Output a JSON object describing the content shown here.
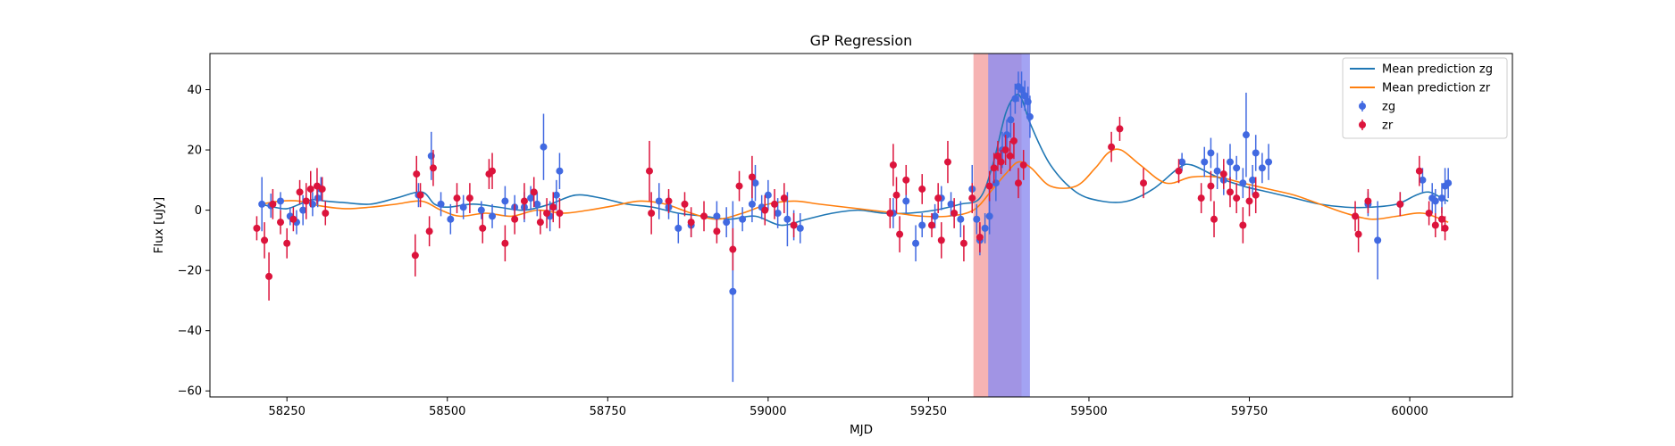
{
  "chart_data": {
    "type": "scatter",
    "title": "GP Regression",
    "xlabel": "MJD",
    "ylabel": "Flux [uJy]",
    "xlim": [
      58130,
      60160
    ],
    "ylim": [
      -62,
      52
    ],
    "xticks": [
      58250,
      58500,
      58750,
      59000,
      59250,
      59500,
      59750,
      60000
    ],
    "yticks": [
      -60,
      -40,
      -20,
      0,
      20,
      40
    ],
    "grid": false,
    "legend_position": "top-right",
    "legend_entries": [
      "Mean prediction zg",
      "Mean prediction zr",
      "zg",
      "zr"
    ],
    "shaded_regions": [
      {
        "x0": 59320,
        "x1": 59395,
        "color": "#f4a0a0"
      },
      {
        "x0": 59343,
        "x1": 59408,
        "color": "#8c8cf0"
      }
    ],
    "series": [
      {
        "name": "Mean prediction zg",
        "kind": "line",
        "color": "#1f77b4",
        "x": [
          58210,
          58230,
          58250,
          58270,
          58290,
          58310,
          58340,
          58380,
          58420,
          58460,
          58480,
          58500,
          58540,
          58580,
          58620,
          58660,
          58700,
          58740,
          58780,
          58820,
          58860,
          58900,
          58940,
          58980,
          59020,
          59060,
          59100,
          59140,
          59180,
          59220,
          59260,
          59300,
          59330,
          59350,
          59370,
          59385,
          59395,
          59410,
          59440,
          59480,
          59520,
          59560,
          59600,
          59640,
          59660,
          59700,
          59740,
          59780,
          59820,
          59860,
          59900,
          59940,
          59980,
          60010,
          60030,
          60050,
          60060
        ],
        "y": [
          2,
          1,
          0.5,
          2,
          3.5,
          3,
          2.5,
          2,
          4,
          6,
          2,
          1,
          2,
          1,
          0,
          2,
          5,
          4,
          2,
          1,
          -1,
          -2,
          -3,
          -2,
          -5,
          -3,
          -1,
          0,
          -1,
          -1,
          0,
          2,
          4,
          15,
          32,
          38,
          37,
          28,
          15,
          6,
          3,
          3,
          7,
          14,
          15,
          11,
          8,
          6,
          4,
          2,
          1,
          1,
          2,
          5,
          6,
          4,
          3
        ]
      },
      {
        "name": "Mean prediction zr",
        "kind": "line",
        "color": "#ff7f0e",
        "x": [
          58210,
          58240,
          58270,
          58300,
          58340,
          58380,
          58420,
          58460,
          58490,
          58520,
          58560,
          58600,
          58640,
          58680,
          58720,
          58760,
          58800,
          58840,
          58880,
          58920,
          58960,
          59000,
          59040,
          59080,
          59120,
          59160,
          59200,
          59240,
          59280,
          59320,
          59350,
          59370,
          59390,
          59410,
          59440,
          59480,
          59510,
          59530,
          59550,
          59580,
          59620,
          59660,
          59700,
          59740,
          59780,
          59820,
          59860,
          59900,
          59940,
          59980,
          60020,
          60060
        ],
        "y": [
          2,
          3,
          3,
          1.5,
          0.5,
          1,
          2,
          3,
          0,
          -2,
          -1,
          -2,
          0,
          -1,
          0,
          1.5,
          3,
          2,
          -1,
          -3,
          -1,
          2,
          3,
          2,
          1,
          0,
          -1,
          -2,
          -2,
          0,
          7,
          12,
          16,
          14,
          8,
          8,
          14,
          19,
          20,
          15,
          9,
          11,
          11,
          9,
          7,
          5,
          2,
          -1,
          -3,
          -2,
          -1,
          -4
        ]
      },
      {
        "name": "zg",
        "kind": "errorbar",
        "color": "#4169e1",
        "points": [
          [
            58211,
            2,
            9
          ],
          [
            58225,
            1.5,
            4
          ],
          [
            58240,
            3,
            3
          ],
          [
            58255,
            -2,
            3
          ],
          [
            58265,
            -4,
            4
          ],
          [
            58275,
            0,
            5
          ],
          [
            58290,
            2,
            4
          ],
          [
            58298,
            4,
            3
          ],
          [
            58303,
            7,
            4
          ],
          [
            58455,
            5,
            4
          ],
          [
            58475,
            18,
            8
          ],
          [
            58490,
            2,
            4
          ],
          [
            58505,
            -3,
            5
          ],
          [
            58525,
            1,
            4
          ],
          [
            58553,
            0,
            3
          ],
          [
            58570,
            -2,
            4
          ],
          [
            58590,
            3,
            5
          ],
          [
            58605,
            1,
            4
          ],
          [
            58620,
            1,
            5
          ],
          [
            58630,
            4,
            4
          ],
          [
            58640,
            2,
            4
          ],
          [
            58650,
            21,
            11
          ],
          [
            58660,
            -2,
            5
          ],
          [
            58670,
            5,
            5
          ],
          [
            58675,
            13,
            6
          ],
          [
            58830,
            3,
            6
          ],
          [
            58845,
            1,
            4
          ],
          [
            58860,
            -6,
            5
          ],
          [
            58880,
            -5,
            4
          ],
          [
            58920,
            -2,
            5
          ],
          [
            58935,
            -4,
            5
          ],
          [
            58945,
            -27,
            30
          ],
          [
            58960,
            -3,
            4
          ],
          [
            58975,
            2,
            6
          ],
          [
            58980,
            9,
            6
          ],
          [
            58990,
            1,
            4
          ],
          [
            59000,
            5,
            5
          ],
          [
            59015,
            -1,
            5
          ],
          [
            59030,
            -3,
            9
          ],
          [
            59040,
            -5,
            5
          ],
          [
            59050,
            -6,
            5
          ],
          [
            59195,
            -1,
            5
          ],
          [
            59215,
            3,
            4
          ],
          [
            59230,
            -11,
            6
          ],
          [
            59240,
            -5,
            4
          ],
          [
            59260,
            -2,
            4
          ],
          [
            59270,
            4,
            4
          ],
          [
            59285,
            2,
            4
          ],
          [
            59300,
            -3,
            6
          ],
          [
            59318,
            7,
            8
          ],
          [
            59325,
            -3,
            5
          ],
          [
            59330,
            -10,
            5
          ],
          [
            59338,
            -6,
            5
          ],
          [
            59345,
            -2,
            6
          ],
          [
            59355,
            9,
            6
          ],
          [
            59365,
            20,
            6
          ],
          [
            59372,
            25,
            5
          ],
          [
            59378,
            30,
            6
          ],
          [
            59385,
            37,
            5
          ],
          [
            59390,
            41,
            5
          ],
          [
            59395,
            40,
            6
          ],
          [
            59400,
            38,
            5
          ],
          [
            59405,
            36,
            5
          ],
          [
            59408,
            31,
            7
          ],
          [
            59645,
            16,
            3
          ],
          [
            59680,
            16,
            5
          ],
          [
            59690,
            19,
            5
          ],
          [
            59700,
            13,
            6
          ],
          [
            59710,
            10,
            5
          ],
          [
            59720,
            16,
            6
          ],
          [
            59730,
            14,
            4
          ],
          [
            59740,
            9,
            5
          ],
          [
            59745,
            25,
            14
          ],
          [
            59755,
            10,
            5
          ],
          [
            59760,
            19,
            6
          ],
          [
            59770,
            14,
            5
          ],
          [
            59780,
            16,
            6
          ],
          [
            59935,
            2,
            4
          ],
          [
            59950,
            -10,
            13
          ],
          [
            59985,
            2,
            4
          ],
          [
            60020,
            10,
            4
          ],
          [
            60035,
            4,
            5
          ],
          [
            60040,
            3,
            4
          ],
          [
            60050,
            4,
            5
          ],
          [
            60055,
            8,
            6
          ],
          [
            60060,
            9,
            5
          ]
        ]
      },
      {
        "name": "zr",
        "kind": "errorbar",
        "color": "#dc143c",
        "points": [
          [
            58203,
            -6,
            4
          ],
          [
            58215,
            -10,
            6
          ],
          [
            58222,
            -22,
            8
          ],
          [
            58228,
            2,
            5
          ],
          [
            58240,
            -4,
            4
          ],
          [
            58250,
            -11,
            5
          ],
          [
            58260,
            -3,
            4
          ],
          [
            58270,
            6,
            4
          ],
          [
            58280,
            3,
            6
          ],
          [
            58287,
            7,
            6
          ],
          [
            58297,
            8,
            6
          ],
          [
            58305,
            7,
            4
          ],
          [
            58310,
            -1,
            4
          ],
          [
            58450,
            -15,
            7
          ],
          [
            58452,
            12,
            6
          ],
          [
            58458,
            5,
            4
          ],
          [
            58472,
            -7,
            5
          ],
          [
            58478,
            14,
            6
          ],
          [
            58515,
            4,
            5
          ],
          [
            58535,
            4,
            5
          ],
          [
            58555,
            -6,
            5
          ],
          [
            58565,
            12,
            5
          ],
          [
            58570,
            13,
            6
          ],
          [
            58590,
            -11,
            6
          ],
          [
            58605,
            -3,
            5
          ],
          [
            58620,
            3,
            6
          ],
          [
            58635,
            6,
            5
          ],
          [
            58645,
            -4,
            4
          ],
          [
            58655,
            -1,
            5
          ],
          [
            58665,
            1,
            5
          ],
          [
            58675,
            -1,
            5
          ],
          [
            58815,
            13,
            10
          ],
          [
            58818,
            -1,
            7
          ],
          [
            58845,
            3,
            4
          ],
          [
            58870,
            2,
            4
          ],
          [
            58880,
            -4,
            5
          ],
          [
            58900,
            -2,
            5
          ],
          [
            58920,
            -7,
            4
          ],
          [
            58945,
            -13,
            7
          ],
          [
            58955,
            8,
            5
          ],
          [
            58975,
            11,
            7
          ],
          [
            58995,
            0,
            5
          ],
          [
            59010,
            2,
            5
          ],
          [
            59025,
            4,
            5
          ],
          [
            59040,
            -5,
            4
          ],
          [
            59190,
            -1,
            5
          ],
          [
            59195,
            15,
            7
          ],
          [
            59200,
            5,
            6
          ],
          [
            59205,
            -8,
            6
          ],
          [
            59215,
            10,
            5
          ],
          [
            59240,
            7,
            5
          ],
          [
            59255,
            -5,
            4
          ],
          [
            59265,
            4,
            5
          ],
          [
            59270,
            -10,
            6
          ],
          [
            59280,
            16,
            7
          ],
          [
            59290,
            -1,
            5
          ],
          [
            59305,
            -11,
            6
          ],
          [
            59318,
            4,
            5
          ],
          [
            59330,
            -9,
            5
          ],
          [
            59345,
            8,
            5
          ],
          [
            59352,
            14,
            5
          ],
          [
            59358,
            18,
            5
          ],
          [
            59363,
            16,
            4
          ],
          [
            59370,
            20,
            5
          ],
          [
            59377,
            18,
            5
          ],
          [
            59383,
            23,
            6
          ],
          [
            59390,
            9,
            5
          ],
          [
            59398,
            15,
            5
          ],
          [
            59535,
            21,
            5
          ],
          [
            59548,
            27,
            4
          ],
          [
            59585,
            9,
            5
          ],
          [
            59640,
            13,
            4
          ],
          [
            59675,
            4,
            5
          ],
          [
            59690,
            8,
            5
          ],
          [
            59695,
            -3,
            6
          ],
          [
            59710,
            12,
            5
          ],
          [
            59720,
            6,
            5
          ],
          [
            59730,
            4,
            5
          ],
          [
            59740,
            -5,
            6
          ],
          [
            59750,
            3,
            5
          ],
          [
            59760,
            5,
            6
          ],
          [
            59915,
            -2,
            5
          ],
          [
            59920,
            -8,
            6
          ],
          [
            59935,
            3,
            4
          ],
          [
            59985,
            2,
            4
          ],
          [
            60015,
            13,
            5
          ],
          [
            60030,
            -1,
            4
          ],
          [
            60040,
            -5,
            4
          ],
          [
            60050,
            -3,
            4
          ],
          [
            60055,
            -6,
            4
          ]
        ]
      }
    ]
  }
}
